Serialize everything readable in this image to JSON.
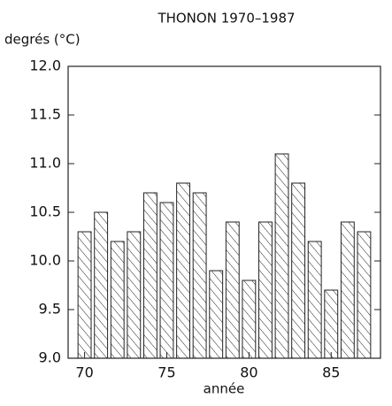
{
  "chart_data": {
    "type": "bar",
    "title": "THONON 1970–1987",
    "y_label": "degrés (°C)",
    "x_label": "année",
    "x": [
      1970,
      1971,
      1972,
      1973,
      1974,
      1975,
      1976,
      1977,
      1978,
      1979,
      1980,
      1981,
      1982,
      1983,
      1984,
      1985,
      1986,
      1987
    ],
    "values": [
      10.3,
      10.5,
      10.2,
      10.3,
      10.7,
      10.6,
      10.8,
      10.7,
      9.9,
      10.4,
      9.8,
      10.4,
      11.1,
      10.8,
      10.2,
      9.7,
      10.4,
      10.3
    ],
    "color": "#222222",
    "xlim": [
      1969,
      1988
    ],
    "xticks": [
      {
        "value": 1970,
        "label": "70"
      },
      {
        "value": 1975,
        "label": "75"
      },
      {
        "value": 1980,
        "label": "80"
      },
      {
        "value": 1985,
        "label": "85"
      }
    ],
    "ylim": [
      9,
      12
    ],
    "yticks": [
      {
        "value": 9,
        "label": "9.0"
      },
      9.5,
      {
        "value": 10,
        "label": "10.0"
      },
      10.5,
      {
        "value": 11,
        "label": "11.0"
      },
      11.5,
      {
        "value": 12,
        "label": "12.0"
      }
    ],
    "grid": false
  }
}
